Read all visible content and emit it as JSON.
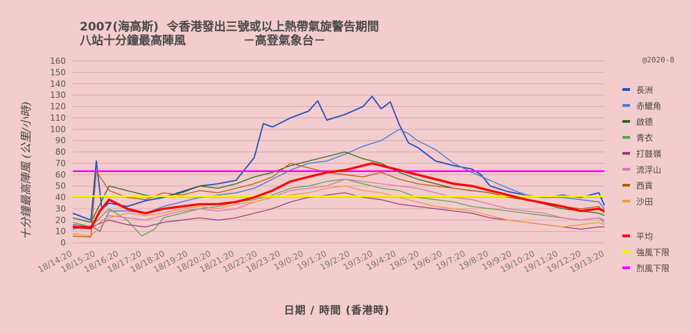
{
  "title_line1": "2007(海高斯)  令香港發出三號或以上熱帶氣旋警告期間",
  "title_line2": "八站十分鐘最高陣風              －高登氣象台－",
  "copyright": "@2020-8",
  "chart_data": {
    "type": "line",
    "title": "2007(海高斯)  令香港發出三號或以上熱帶氣旋警告期間 八站十分鐘最高陣風 －高登氣象台－",
    "xlabel": "日期 / 時間 (香港時)",
    "ylabel": "十分鐘最高陣風 (公里/小時)",
    "ylim": [
      0,
      160
    ],
    "yticks": [
      0,
      10,
      20,
      30,
      40,
      50,
      60,
      70,
      80,
      90,
      100,
      110,
      120,
      130,
      140,
      150,
      160
    ],
    "xticks": [
      "18/14:20",
      "18/15:20",
      "18/16:20",
      "18/17:20",
      "18/18:20",
      "18/19:20",
      "18/20:20",
      "18/21:20",
      "18/22:20",
      "18/23:20",
      "19/0:20",
      "19/1:20",
      "19/2:20",
      "19/3:20",
      "19/4:20",
      "19/5:20",
      "19/6:20",
      "19/7:20",
      "19/8:20",
      "19/9:20",
      "19/10:20",
      "19/11:20",
      "19/12:20",
      "19/13:20"
    ],
    "legend_position": "right",
    "grid": "horizontal",
    "series_anchor_note": "values read every hour; x in hours since 18/14:20",
    "series": [
      {
        "name": "長洲",
        "color": "#1f4fc4",
        "width": 1.8,
        "points": [
          [
            0,
            26
          ],
          [
            1,
            20
          ],
          [
            1.3,
            72
          ],
          [
            1.6,
            30
          ],
          [
            2,
            35
          ],
          [
            3,
            32
          ],
          [
            4,
            37
          ],
          [
            5,
            40
          ],
          [
            6,
            45
          ],
          [
            7,
            50
          ],
          [
            8,
            52
          ],
          [
            9,
            55
          ],
          [
            10,
            75
          ],
          [
            10.5,
            105
          ],
          [
            11,
            102
          ],
          [
            12,
            110
          ],
          [
            13,
            116
          ],
          [
            13.5,
            125
          ],
          [
            14,
            108
          ],
          [
            15,
            113
          ],
          [
            16,
            120
          ],
          [
            16.5,
            129
          ],
          [
            17,
            118
          ],
          [
            17.5,
            124
          ],
          [
            18,
            104
          ],
          [
            18.5,
            88
          ],
          [
            19,
            84
          ],
          [
            20,
            72
          ],
          [
            21,
            68
          ],
          [
            22,
            65
          ],
          [
            22.5,
            60
          ],
          [
            23,
            50
          ],
          [
            24,
            45
          ],
          [
            25,
            42
          ],
          [
            26,
            40
          ],
          [
            27,
            42
          ],
          [
            28,
            40
          ],
          [
            29,
            44
          ],
          [
            29.3,
            33
          ]
        ]
      },
      {
        "name": "赤鱲角",
        "color": "#4a7bd8",
        "width": 1.4,
        "points": [
          [
            0,
            12
          ],
          [
            1,
            15
          ],
          [
            1.5,
            10
          ],
          [
            2,
            28
          ],
          [
            3,
            28
          ],
          [
            4,
            26
          ],
          [
            5,
            32
          ],
          [
            6,
            36
          ],
          [
            7,
            40
          ],
          [
            8,
            42
          ],
          [
            9,
            44
          ],
          [
            10,
            48
          ],
          [
            11,
            56
          ],
          [
            12,
            64
          ],
          [
            13,
            70
          ],
          [
            14,
            72
          ],
          [
            15,
            78
          ],
          [
            16,
            85
          ],
          [
            17,
            90
          ],
          [
            18,
            100
          ],
          [
            18.5,
            96
          ],
          [
            19,
            90
          ],
          [
            20,
            82
          ],
          [
            20.5,
            76
          ],
          [
            21,
            70
          ],
          [
            22,
            62
          ],
          [
            23,
            55
          ],
          [
            24,
            48
          ],
          [
            25,
            42
          ],
          [
            26,
            40
          ],
          [
            27,
            40
          ],
          [
            28,
            38
          ],
          [
            29,
            36
          ],
          [
            29.3,
            30
          ]
        ]
      },
      {
        "name": "啟德",
        "color": "#2c6b1e",
        "width": 1.3,
        "points": [
          [
            0,
            22
          ],
          [
            1,
            18
          ],
          [
            2,
            50
          ],
          [
            3,
            46
          ],
          [
            4,
            42
          ],
          [
            5,
            40
          ],
          [
            6,
            44
          ],
          [
            7,
            50
          ],
          [
            8,
            48
          ],
          [
            9,
            52
          ],
          [
            10,
            58
          ],
          [
            11,
            62
          ],
          [
            12,
            68
          ],
          [
            13,
            72
          ],
          [
            14,
            76
          ],
          [
            15,
            80
          ],
          [
            16,
            74
          ],
          [
            17,
            70
          ],
          [
            18,
            62
          ],
          [
            19,
            56
          ],
          [
            20,
            52
          ],
          [
            21,
            48
          ],
          [
            22,
            46
          ],
          [
            23,
            44
          ],
          [
            24,
            40
          ],
          [
            25,
            38
          ],
          [
            26,
            34
          ],
          [
            27,
            30
          ],
          [
            28,
            28
          ],
          [
            29,
            26
          ],
          [
            29.3,
            24
          ]
        ]
      },
      {
        "name": "青衣",
        "color": "#5aa84a",
        "width": 1.3,
        "points": [
          [
            0,
            18
          ],
          [
            1,
            14
          ],
          [
            2,
            30
          ],
          [
            3,
            20
          ],
          [
            3.8,
            6
          ],
          [
            4.5,
            12
          ],
          [
            5,
            22
          ],
          [
            6,
            26
          ],
          [
            7,
            30
          ],
          [
            8,
            32
          ],
          [
            9,
            36
          ],
          [
            10,
            38
          ],
          [
            11,
            42
          ],
          [
            12,
            48
          ],
          [
            13,
            50
          ],
          [
            14,
            54
          ],
          [
            15,
            56
          ],
          [
            16,
            52
          ],
          [
            17,
            48
          ],
          [
            18,
            46
          ],
          [
            19,
            40
          ],
          [
            20,
            38
          ],
          [
            21,
            36
          ],
          [
            22,
            32
          ],
          [
            23,
            30
          ],
          [
            24,
            28
          ],
          [
            25,
            26
          ],
          [
            26,
            24
          ],
          [
            27,
            22
          ],
          [
            28,
            20
          ],
          [
            29,
            22
          ],
          [
            29.3,
            18
          ]
        ]
      },
      {
        "name": "打鼓嶺",
        "color": "#9b3e7c",
        "width": 1.3,
        "points": [
          [
            0,
            16
          ],
          [
            1,
            14
          ],
          [
            2,
            20
          ],
          [
            3,
            16
          ],
          [
            4,
            14
          ],
          [
            5,
            18
          ],
          [
            6,
            20
          ],
          [
            7,
            22
          ],
          [
            8,
            20
          ],
          [
            9,
            22
          ],
          [
            10,
            26
          ],
          [
            11,
            30
          ],
          [
            12,
            36
          ],
          [
            13,
            40
          ],
          [
            14,
            42
          ],
          [
            15,
            44
          ],
          [
            16,
            40
          ],
          [
            17,
            38
          ],
          [
            18,
            34
          ],
          [
            19,
            32
          ],
          [
            20,
            30
          ],
          [
            21,
            28
          ],
          [
            22,
            26
          ],
          [
            23,
            22
          ],
          [
            24,
            20
          ],
          [
            25,
            18
          ],
          [
            26,
            16
          ],
          [
            27,
            14
          ],
          [
            28,
            12
          ],
          [
            29,
            14
          ],
          [
            29.3,
            14
          ]
        ]
      },
      {
        "name": "流浮山",
        "color": "#d27ab0",
        "width": 1.3,
        "points": [
          [
            0,
            14
          ],
          [
            1,
            12
          ],
          [
            2,
            24
          ],
          [
            3,
            22
          ],
          [
            4,
            20
          ],
          [
            5,
            24
          ],
          [
            6,
            28
          ],
          [
            7,
            30
          ],
          [
            8,
            28
          ],
          [
            9,
            30
          ],
          [
            10,
            36
          ],
          [
            11,
            40
          ],
          [
            12,
            46
          ],
          [
            13,
            48
          ],
          [
            14,
            50
          ],
          [
            15,
            56
          ],
          [
            16,
            54
          ],
          [
            17,
            52
          ],
          [
            18,
            50
          ],
          [
            19,
            48
          ],
          [
            20,
            44
          ],
          [
            21,
            40
          ],
          [
            22,
            38
          ],
          [
            23,
            34
          ],
          [
            24,
            30
          ],
          [
            25,
            28
          ],
          [
            26,
            26
          ],
          [
            27,
            22
          ],
          [
            28,
            20
          ],
          [
            29,
            22
          ],
          [
            29.3,
            20
          ]
        ]
      },
      {
        "name": "西貢",
        "color": "#b85e10",
        "width": 1.3,
        "points": [
          [
            0,
            6
          ],
          [
            1,
            5
          ],
          [
            1.3,
            63
          ],
          [
            2,
            46
          ],
          [
            3,
            40
          ],
          [
            4,
            38
          ],
          [
            5,
            44
          ],
          [
            6,
            42
          ],
          [
            7,
            46
          ],
          [
            8,
            44
          ],
          [
            9,
            48
          ],
          [
            10,
            52
          ],
          [
            11,
            58
          ],
          [
            12,
            70
          ],
          [
            13,
            66
          ],
          [
            14,
            62
          ],
          [
            15,
            60
          ],
          [
            16,
            58
          ],
          [
            17,
            62
          ],
          [
            18,
            56
          ],
          [
            19,
            52
          ],
          [
            20,
            50
          ],
          [
            21,
            48
          ],
          [
            22,
            46
          ],
          [
            23,
            44
          ],
          [
            24,
            40
          ],
          [
            25,
            38
          ],
          [
            26,
            34
          ],
          [
            27,
            32
          ],
          [
            28,
            30
          ],
          [
            29,
            32
          ],
          [
            29.3,
            26
          ]
        ]
      },
      {
        "name": "沙田",
        "color": "#ee9945",
        "width": 1.3,
        "points": [
          [
            0,
            8
          ],
          [
            1,
            6
          ],
          [
            2,
            22
          ],
          [
            3,
            26
          ],
          [
            4,
            24
          ],
          [
            5,
            26
          ],
          [
            6,
            30
          ],
          [
            7,
            32
          ],
          [
            8,
            30
          ],
          [
            9,
            34
          ],
          [
            10,
            36
          ],
          [
            11,
            40
          ],
          [
            12,
            42
          ],
          [
            13,
            44
          ],
          [
            14,
            48
          ],
          [
            15,
            50
          ],
          [
            16,
            46
          ],
          [
            17,
            44
          ],
          [
            18,
            40
          ],
          [
            19,
            36
          ],
          [
            20,
            32
          ],
          [
            21,
            30
          ],
          [
            22,
            28
          ],
          [
            23,
            24
          ],
          [
            24,
            20
          ],
          [
            25,
            18
          ],
          [
            26,
            16
          ],
          [
            27,
            14
          ],
          [
            28,
            16
          ],
          [
            29,
            18
          ],
          [
            29.3,
            16
          ]
        ]
      },
      {
        "name": "平均",
        "color": "#ff0000",
        "width": 3.2,
        "points": [
          [
            0,
            14
          ],
          [
            1,
            13
          ],
          [
            1.5,
            28
          ],
          [
            2,
            38
          ],
          [
            2.5,
            34
          ],
          [
            3,
            30
          ],
          [
            4,
            26
          ],
          [
            5,
            30
          ],
          [
            6,
            32
          ],
          [
            7,
            34
          ],
          [
            8,
            34
          ],
          [
            9,
            36
          ],
          [
            10,
            40
          ],
          [
            11,
            46
          ],
          [
            12,
            54
          ],
          [
            13,
            58
          ],
          [
            14,
            62
          ],
          [
            15,
            64
          ],
          [
            16,
            68
          ],
          [
            16.5,
            70
          ],
          [
            17,
            68
          ],
          [
            18,
            64
          ],
          [
            19,
            60
          ],
          [
            20,
            56
          ],
          [
            21,
            52
          ],
          [
            22,
            50
          ],
          [
            23,
            46
          ],
          [
            24,
            42
          ],
          [
            25,
            38
          ],
          [
            26,
            35
          ],
          [
            27,
            32
          ],
          [
            28,
            28
          ],
          [
            29,
            30
          ],
          [
            29.3,
            28
          ]
        ]
      },
      {
        "name": "強風下限",
        "color": "#f5f500",
        "width": 2.5,
        "points": [
          [
            0,
            41
          ],
          [
            29.3,
            41
          ]
        ]
      },
      {
        "name": "烈風下限",
        "color": "#ff00ff",
        "width": 2.5,
        "points": [
          [
            0,
            63
          ],
          [
            29.3,
            63
          ]
        ]
      }
    ]
  }
}
